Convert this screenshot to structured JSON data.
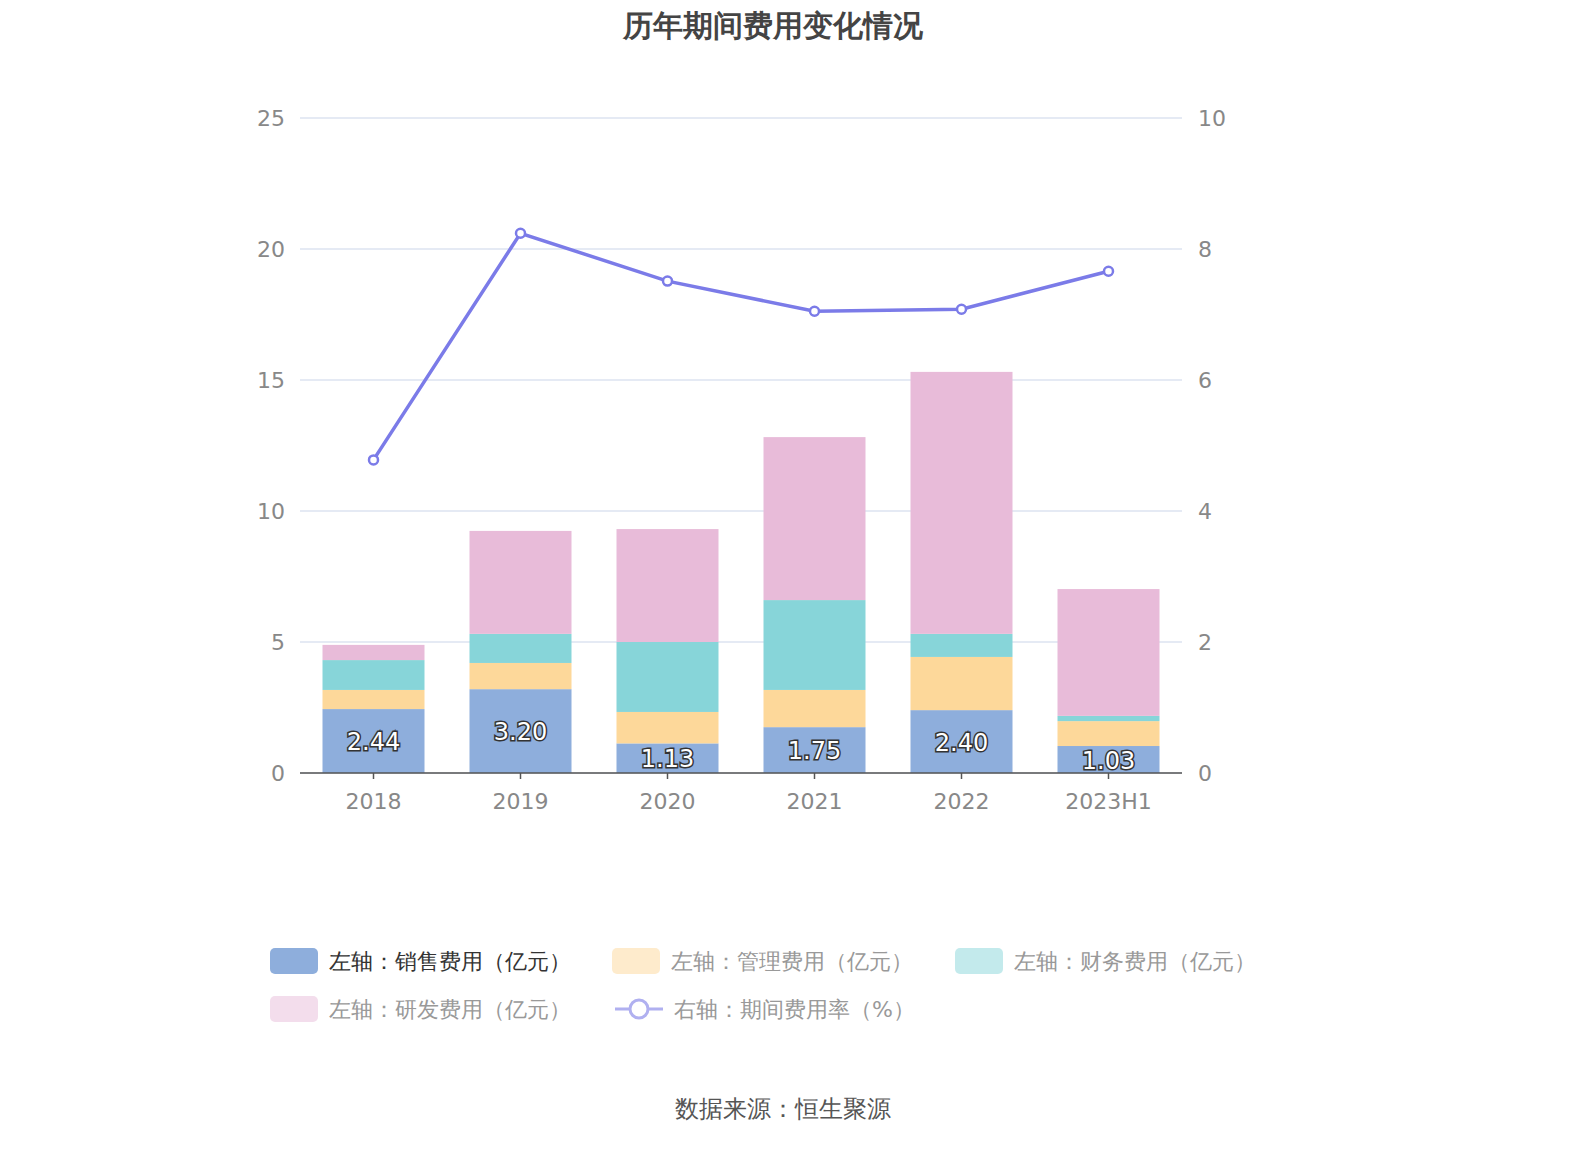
{
  "chart_data": {
    "type": "bar",
    "title": "历年期间费用变化情况",
    "source": "数据来源：恒生聚源",
    "stacked": true,
    "grid": true,
    "legend": "bottom",
    "categories": [
      "2018",
      "2019",
      "2020",
      "2021",
      "2022",
      "2023H1"
    ],
    "ylim": [
      0,
      25
    ],
    "yticks": [
      0,
      5,
      10,
      15,
      20,
      25
    ],
    "y2lim": [
      0,
      10
    ],
    "y2ticks": [
      0,
      2,
      4,
      6,
      8,
      10
    ],
    "series": [
      {
        "name": "左轴：销售费用（亿元）",
        "color": "#8eaedc",
        "values": [
          2.44,
          3.2,
          1.13,
          1.75,
          2.4,
          1.03
        ],
        "data_labels": true,
        "value_labels": [
          "2.44",
          "3.20",
          "1.13",
          "1.75",
          "2.40",
          "1.03"
        ]
      },
      {
        "name": "左轴：管理费用（亿元）",
        "color": "#fdd89a",
        "values": [
          0.73,
          1.0,
          1.2,
          1.42,
          2.03,
          0.95
        ]
      },
      {
        "name": "左轴：财务费用（亿元）",
        "color": "#87d5d9",
        "values": [
          1.14,
          1.11,
          2.67,
          3.43,
          0.88,
          0.2
        ]
      },
      {
        "name": "左轴：研发费用（亿元）",
        "color": "#e8bbd9",
        "values": [
          0.58,
          3.93,
          4.31,
          6.22,
          10.0,
          4.84
        ]
      },
      {
        "name": "右轴：期间费用率（%）",
        "color": "#7b7be8",
        "type": "line",
        "marker": "circle",
        "axis": "y2",
        "values": [
          4.78,
          8.24,
          7.51,
          7.05,
          7.08,
          7.66
        ]
      }
    ]
  }
}
